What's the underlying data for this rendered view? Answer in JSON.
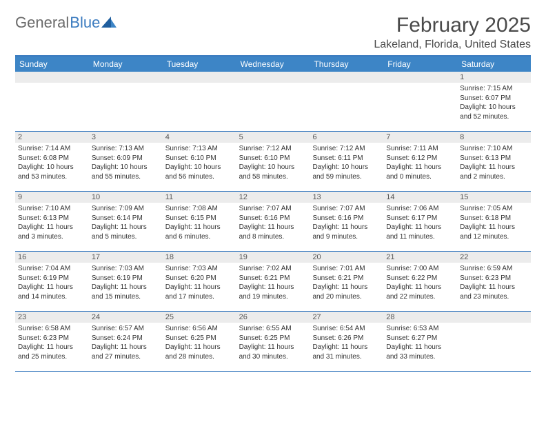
{
  "brand": {
    "part1": "General",
    "part2": "Blue"
  },
  "title": "February 2025",
  "location": "Lakeland, Florida, United States",
  "colors": {
    "header_bar": "#3d85c6",
    "header_border": "#3b7bbf",
    "day_num_bg": "#ececec",
    "text": "#333333",
    "title_text": "#4a4a4a"
  },
  "weekdays": [
    "Sunday",
    "Monday",
    "Tuesday",
    "Wednesday",
    "Thursday",
    "Friday",
    "Saturday"
  ],
  "weeks": [
    [
      {
        "n": "",
        "sr": "",
        "ss": "",
        "dl": ""
      },
      {
        "n": "",
        "sr": "",
        "ss": "",
        "dl": ""
      },
      {
        "n": "",
        "sr": "",
        "ss": "",
        "dl": ""
      },
      {
        "n": "",
        "sr": "",
        "ss": "",
        "dl": ""
      },
      {
        "n": "",
        "sr": "",
        "ss": "",
        "dl": ""
      },
      {
        "n": "",
        "sr": "",
        "ss": "",
        "dl": ""
      },
      {
        "n": "1",
        "sr": "Sunrise: 7:15 AM",
        "ss": "Sunset: 6:07 PM",
        "dl": "Daylight: 10 hours and 52 minutes."
      }
    ],
    [
      {
        "n": "2",
        "sr": "Sunrise: 7:14 AM",
        "ss": "Sunset: 6:08 PM",
        "dl": "Daylight: 10 hours and 53 minutes."
      },
      {
        "n": "3",
        "sr": "Sunrise: 7:13 AM",
        "ss": "Sunset: 6:09 PM",
        "dl": "Daylight: 10 hours and 55 minutes."
      },
      {
        "n": "4",
        "sr": "Sunrise: 7:13 AM",
        "ss": "Sunset: 6:10 PM",
        "dl": "Daylight: 10 hours and 56 minutes."
      },
      {
        "n": "5",
        "sr": "Sunrise: 7:12 AM",
        "ss": "Sunset: 6:10 PM",
        "dl": "Daylight: 10 hours and 58 minutes."
      },
      {
        "n": "6",
        "sr": "Sunrise: 7:12 AM",
        "ss": "Sunset: 6:11 PM",
        "dl": "Daylight: 10 hours and 59 minutes."
      },
      {
        "n": "7",
        "sr": "Sunrise: 7:11 AM",
        "ss": "Sunset: 6:12 PM",
        "dl": "Daylight: 11 hours and 0 minutes."
      },
      {
        "n": "8",
        "sr": "Sunrise: 7:10 AM",
        "ss": "Sunset: 6:13 PM",
        "dl": "Daylight: 11 hours and 2 minutes."
      }
    ],
    [
      {
        "n": "9",
        "sr": "Sunrise: 7:10 AM",
        "ss": "Sunset: 6:13 PM",
        "dl": "Daylight: 11 hours and 3 minutes."
      },
      {
        "n": "10",
        "sr": "Sunrise: 7:09 AM",
        "ss": "Sunset: 6:14 PM",
        "dl": "Daylight: 11 hours and 5 minutes."
      },
      {
        "n": "11",
        "sr": "Sunrise: 7:08 AM",
        "ss": "Sunset: 6:15 PM",
        "dl": "Daylight: 11 hours and 6 minutes."
      },
      {
        "n": "12",
        "sr": "Sunrise: 7:07 AM",
        "ss": "Sunset: 6:16 PM",
        "dl": "Daylight: 11 hours and 8 minutes."
      },
      {
        "n": "13",
        "sr": "Sunrise: 7:07 AM",
        "ss": "Sunset: 6:16 PM",
        "dl": "Daylight: 11 hours and 9 minutes."
      },
      {
        "n": "14",
        "sr": "Sunrise: 7:06 AM",
        "ss": "Sunset: 6:17 PM",
        "dl": "Daylight: 11 hours and 11 minutes."
      },
      {
        "n": "15",
        "sr": "Sunrise: 7:05 AM",
        "ss": "Sunset: 6:18 PM",
        "dl": "Daylight: 11 hours and 12 minutes."
      }
    ],
    [
      {
        "n": "16",
        "sr": "Sunrise: 7:04 AM",
        "ss": "Sunset: 6:19 PM",
        "dl": "Daylight: 11 hours and 14 minutes."
      },
      {
        "n": "17",
        "sr": "Sunrise: 7:03 AM",
        "ss": "Sunset: 6:19 PM",
        "dl": "Daylight: 11 hours and 15 minutes."
      },
      {
        "n": "18",
        "sr": "Sunrise: 7:03 AM",
        "ss": "Sunset: 6:20 PM",
        "dl": "Daylight: 11 hours and 17 minutes."
      },
      {
        "n": "19",
        "sr": "Sunrise: 7:02 AM",
        "ss": "Sunset: 6:21 PM",
        "dl": "Daylight: 11 hours and 19 minutes."
      },
      {
        "n": "20",
        "sr": "Sunrise: 7:01 AM",
        "ss": "Sunset: 6:21 PM",
        "dl": "Daylight: 11 hours and 20 minutes."
      },
      {
        "n": "21",
        "sr": "Sunrise: 7:00 AM",
        "ss": "Sunset: 6:22 PM",
        "dl": "Daylight: 11 hours and 22 minutes."
      },
      {
        "n": "22",
        "sr": "Sunrise: 6:59 AM",
        "ss": "Sunset: 6:23 PM",
        "dl": "Daylight: 11 hours and 23 minutes."
      }
    ],
    [
      {
        "n": "23",
        "sr": "Sunrise: 6:58 AM",
        "ss": "Sunset: 6:23 PM",
        "dl": "Daylight: 11 hours and 25 minutes."
      },
      {
        "n": "24",
        "sr": "Sunrise: 6:57 AM",
        "ss": "Sunset: 6:24 PM",
        "dl": "Daylight: 11 hours and 27 minutes."
      },
      {
        "n": "25",
        "sr": "Sunrise: 6:56 AM",
        "ss": "Sunset: 6:25 PM",
        "dl": "Daylight: 11 hours and 28 minutes."
      },
      {
        "n": "26",
        "sr": "Sunrise: 6:55 AM",
        "ss": "Sunset: 6:25 PM",
        "dl": "Daylight: 11 hours and 30 minutes."
      },
      {
        "n": "27",
        "sr": "Sunrise: 6:54 AM",
        "ss": "Sunset: 6:26 PM",
        "dl": "Daylight: 11 hours and 31 minutes."
      },
      {
        "n": "28",
        "sr": "Sunrise: 6:53 AM",
        "ss": "Sunset: 6:27 PM",
        "dl": "Daylight: 11 hours and 33 minutes."
      },
      {
        "n": "",
        "sr": "",
        "ss": "",
        "dl": ""
      }
    ]
  ]
}
